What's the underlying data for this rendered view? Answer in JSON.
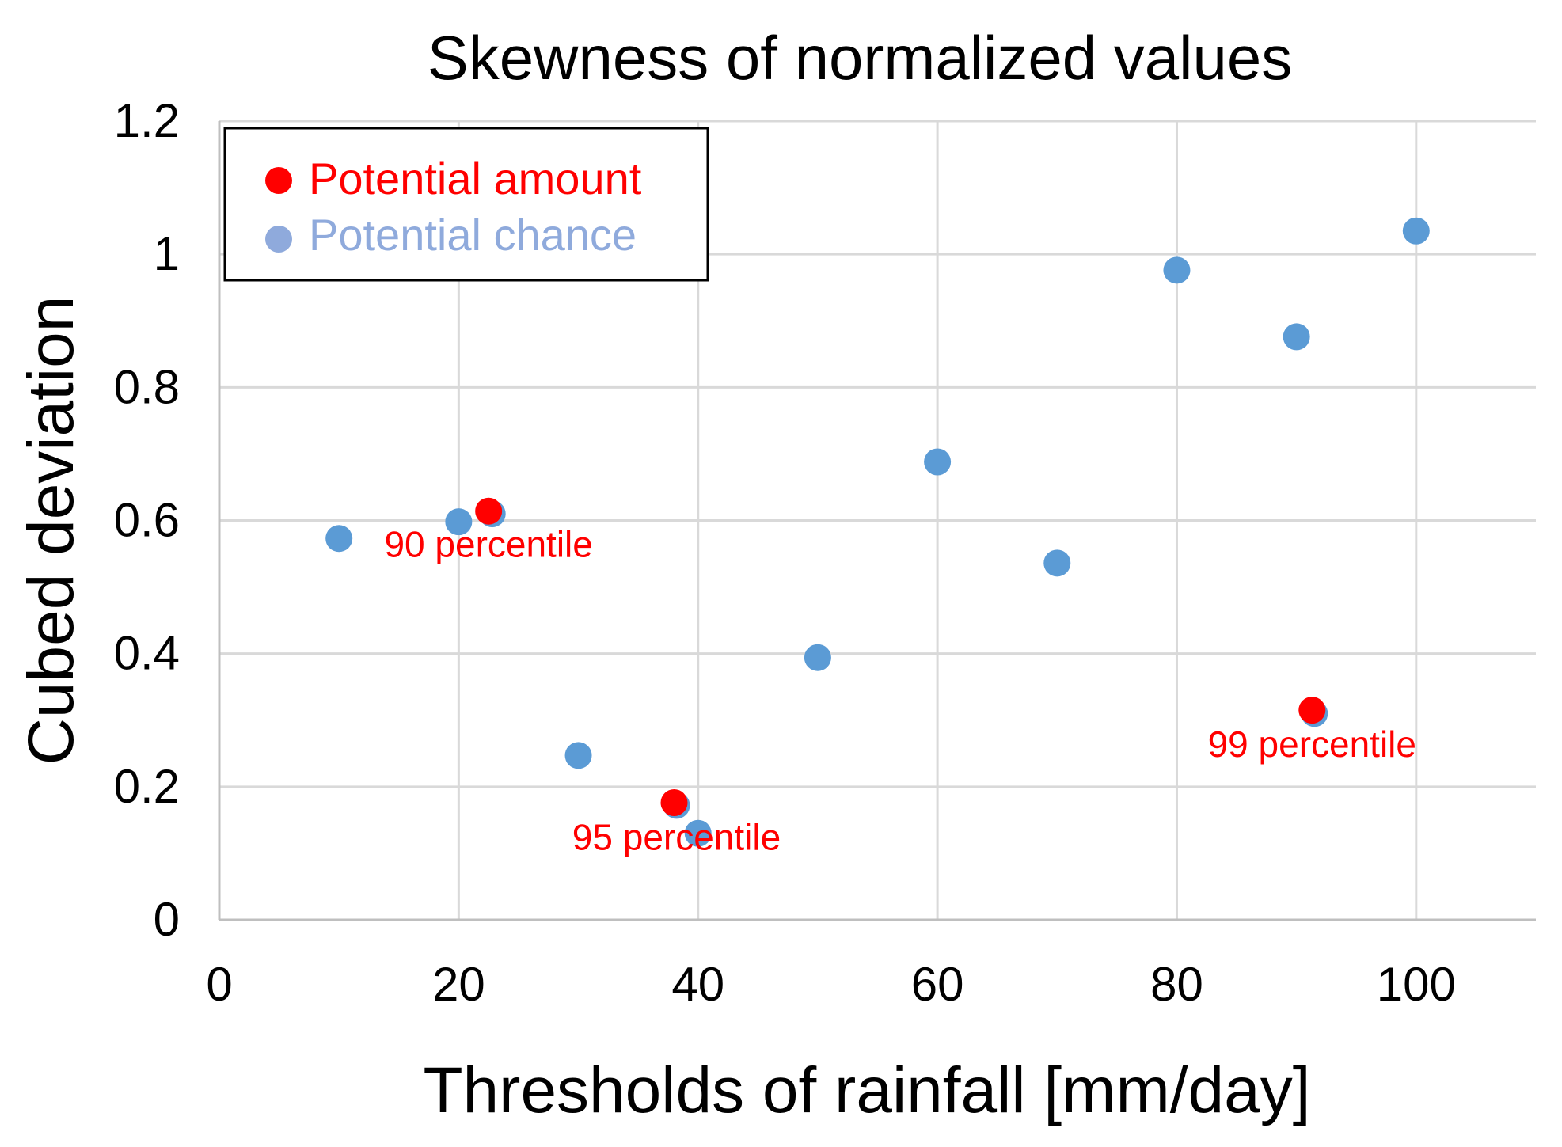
{
  "chart_data": {
    "type": "scatter",
    "title": "Skewness of normalized values",
    "xlabel": "Thresholds of rainfall [mm/day]",
    "ylabel": "Cubed deviation",
    "xlim": [
      0,
      110
    ],
    "ylim": [
      0,
      1.2
    ],
    "xticks": [
      0,
      20,
      40,
      60,
      80,
      100
    ],
    "xtick_labels": [
      "0",
      "20",
      "40",
      "60",
      "80",
      "100"
    ],
    "yticks": [
      0,
      0.2,
      0.4,
      0.6,
      0.8,
      1.0,
      1.2
    ],
    "ytick_labels": [
      "0",
      "0.2",
      "0.4",
      "0.6",
      "0.8",
      "1",
      "1.2"
    ],
    "grid": true,
    "legend_position": "top-left",
    "series": [
      {
        "name": "Potential chance",
        "color": "#5b9bd5",
        "legend_color": "#8faadc",
        "points": [
          {
            "x": 10,
            "y": 0.573
          },
          {
            "x": 20,
            "y": 0.598
          },
          {
            "x": 22.8,
            "y": 0.61
          },
          {
            "x": 30,
            "y": 0.247
          },
          {
            "x": 38.2,
            "y": 0.172
          },
          {
            "x": 40,
            "y": 0.13
          },
          {
            "x": 50,
            "y": 0.394
          },
          {
            "x": 60,
            "y": 0.688
          },
          {
            "x": 70,
            "y": 0.536
          },
          {
            "x": 80,
            "y": 0.976
          },
          {
            "x": 90,
            "y": 0.876
          },
          {
            "x": 91.5,
            "y": 0.31
          },
          {
            "x": 100,
            "y": 1.035
          }
        ]
      },
      {
        "name": "Potential amount",
        "color": "#ff0000",
        "legend_color": "#ff0000",
        "points": [
          {
            "x": 22.5,
            "y": 0.614
          },
          {
            "x": 38,
            "y": 0.176
          },
          {
            "x": 91.3,
            "y": 0.315
          }
        ]
      }
    ],
    "annotations": [
      {
        "text": "90 percentile",
        "x": 22.5,
        "y": 0.545,
        "color": "#ff0000"
      },
      {
        "text": "95 percentile",
        "x": 38.2,
        "y": 0.105,
        "color": "#ff0000"
      },
      {
        "text": "99 percentile",
        "x": 91.3,
        "y": 0.245,
        "color": "#ff0000"
      }
    ]
  }
}
